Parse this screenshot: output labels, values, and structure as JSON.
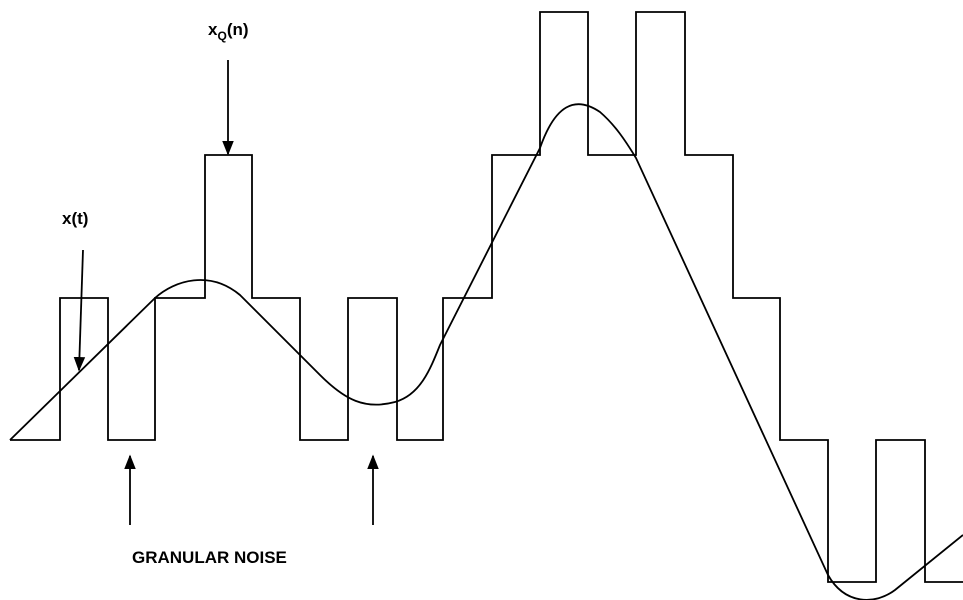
{
  "labels": {
    "xq": {
      "base": "x",
      "sub": "Q",
      "rest": "(n)"
    },
    "xt": "x(t)",
    "noise": "GRANULAR NOISE"
  }
}
